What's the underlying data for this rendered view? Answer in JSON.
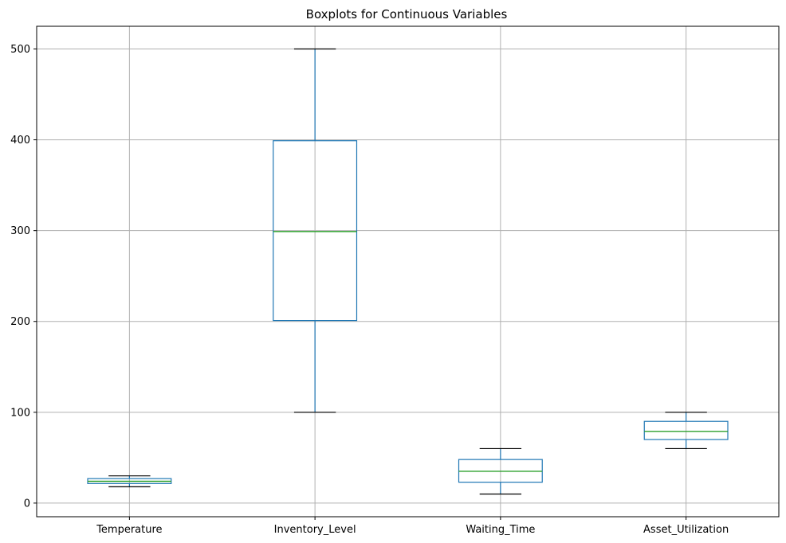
{
  "chart_data": {
    "type": "box",
    "title": "Boxplots for Continuous Variables",
    "xlabel": "",
    "ylabel": "",
    "categories": [
      "Temperature",
      "Inventory_Level",
      "Waiting_Time",
      "Asset_Utilization"
    ],
    "boxes": [
      {
        "name": "Temperature",
        "min": 18,
        "q1": 21.5,
        "median": 24,
        "q3": 27,
        "max": 30
      },
      {
        "name": "Inventory_Level",
        "min": 100,
        "q1": 201,
        "median": 299,
        "q3": 399,
        "max": 500
      },
      {
        "name": "Waiting_Time",
        "min": 10,
        "q1": 23,
        "median": 35,
        "q3": 48,
        "max": 60
      },
      {
        "name": "Asset_Utilization",
        "min": 60,
        "q1": 70,
        "median": 79,
        "q3": 90,
        "max": 100
      }
    ],
    "ylim": [
      -15,
      525
    ],
    "yticks": [
      0,
      100,
      200,
      300,
      400,
      500
    ],
    "grid": true,
    "colors": {
      "box": "#1f77b4",
      "median": "#2ca02c",
      "cap": "#000000",
      "grid": "#b0b0b0"
    }
  }
}
